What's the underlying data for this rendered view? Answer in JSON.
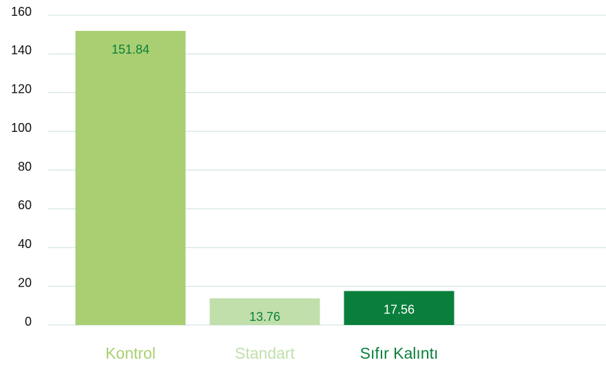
{
  "chart_data": {
    "type": "bar",
    "categories": [
      "Kontrol",
      "Standart",
      "Sıfır Kalıntı"
    ],
    "values": [
      151.84,
      13.76,
      17.56
    ],
    "colors": [
      "#a9cf72",
      "#c0dfaa",
      "#0a7f3c"
    ],
    "value_label_colors": [
      "#0a7f3c",
      "#0a7f3c",
      "#ffffff"
    ],
    "ylim": [
      0,
      160
    ],
    "yticks": [
      0,
      20,
      40,
      60,
      80,
      100,
      120,
      140,
      160
    ],
    "grid": true
  }
}
